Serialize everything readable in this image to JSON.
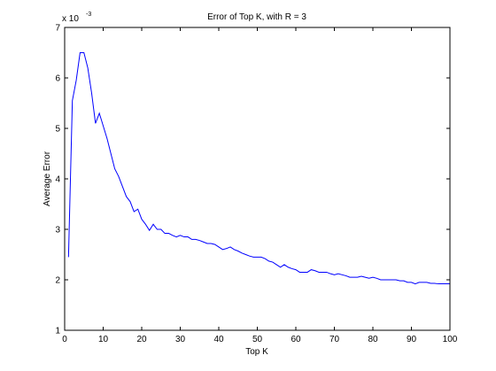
{
  "chart_data": {
    "type": "line",
    "title": "Error of Top K, with R = 3",
    "xlabel": "Top K",
    "ylabel": "Average Error",
    "y_multiplier": "x 10",
    "y_exponent": "-3",
    "xlim": [
      0,
      100
    ],
    "ylim": [
      1,
      7
    ],
    "xticks": [
      0,
      10,
      20,
      30,
      40,
      50,
      60,
      70,
      80,
      90,
      100
    ],
    "yticks": [
      1,
      2,
      3,
      4,
      5,
      6,
      7
    ],
    "grid": false,
    "line_color": "#0000ff",
    "series": [
      {
        "x": [
          1,
          2,
          3,
          4,
          5,
          6,
          7,
          8,
          9,
          10,
          11,
          12,
          13,
          14,
          15,
          16,
          17,
          18,
          19,
          20,
          21,
          22,
          23,
          24,
          25,
          26,
          27,
          28,
          29,
          30,
          31,
          32,
          33,
          34,
          35,
          36,
          37,
          38,
          39,
          40,
          41,
          42,
          43,
          44,
          45,
          46,
          47,
          48,
          49,
          50,
          51,
          52,
          53,
          54,
          55,
          56,
          57,
          58,
          59,
          60,
          61,
          62,
          63,
          64,
          65,
          66,
          67,
          68,
          69,
          70,
          71,
          72,
          73,
          74,
          75,
          76,
          77,
          78,
          79,
          80,
          81,
          82,
          83,
          84,
          85,
          86,
          87,
          88,
          89,
          90,
          91,
          92,
          93,
          94,
          95,
          96,
          97,
          98,
          99,
          100
        ],
        "values": [
          2.45,
          5.55,
          5.95,
          6.5,
          6.5,
          6.2,
          5.7,
          5.1,
          5.3,
          5.05,
          4.8,
          4.5,
          4.2,
          4.05,
          3.85,
          3.65,
          3.55,
          3.35,
          3.4,
          3.2,
          3.1,
          2.98,
          3.1,
          3.0,
          3.0,
          2.92,
          2.92,
          2.88,
          2.85,
          2.88,
          2.85,
          2.85,
          2.8,
          2.8,
          2.78,
          2.75,
          2.72,
          2.72,
          2.7,
          2.65,
          2.6,
          2.62,
          2.65,
          2.6,
          2.57,
          2.53,
          2.5,
          2.47,
          2.45,
          2.45,
          2.45,
          2.42,
          2.37,
          2.35,
          2.3,
          2.25,
          2.3,
          2.25,
          2.22,
          2.2,
          2.15,
          2.15,
          2.15,
          2.2,
          2.18,
          2.15,
          2.15,
          2.15,
          2.12,
          2.1,
          2.12,
          2.1,
          2.08,
          2.05,
          2.05,
          2.05,
          2.07,
          2.05,
          2.03,
          2.05,
          2.03,
          2.0,
          2.0,
          2.0,
          2.0,
          2.0,
          1.98,
          1.98,
          1.95,
          1.95,
          1.92,
          1.95,
          1.95,
          1.95,
          1.93,
          1.93,
          1.92,
          1.92,
          1.92,
          1.92
        ]
      }
    ]
  }
}
